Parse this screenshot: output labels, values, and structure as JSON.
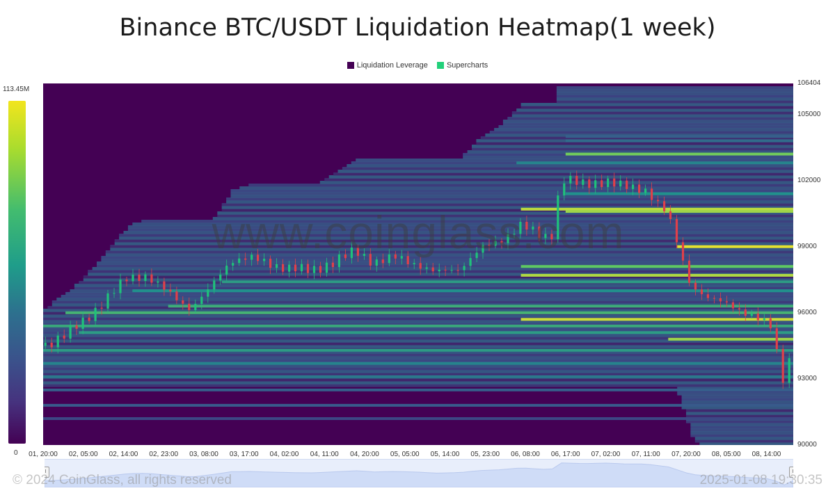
{
  "chart_data": {
    "type": "heatmap",
    "title": "Binance BTC/USDT Liquidation Heatmap(1 week)",
    "legend": [
      {
        "name": "Liquidation Leverage",
        "color": "#440154"
      },
      {
        "name": "Supercharts",
        "color": "#22d07a"
      }
    ],
    "legend_position": "top-center",
    "color_scale": {
      "min_label": "0",
      "max_label": "113.45M",
      "palette": "viridis"
    },
    "ylim": [
      90000,
      106404
    ],
    "y_ticks": [
      "106404",
      "105000",
      "102000",
      "99000",
      "96000",
      "93000",
      "90000"
    ],
    "y_tick_values": [
      106404,
      105000,
      102000,
      99000,
      96000,
      93000,
      90000
    ],
    "x_ticks": [
      "01, 20:00",
      "02, 05:00",
      "02, 14:00",
      "02, 23:00",
      "03, 08:00",
      "03, 17:00",
      "04, 02:00",
      "04, 11:00",
      "04, 20:00",
      "05, 05:00",
      "05, 14:00",
      "05, 23:00",
      "06, 08:00",
      "06, 17:00",
      "07, 02:00",
      "07, 11:00",
      "07, 20:00",
      "08, 05:00",
      "08, 14:00"
    ],
    "x_range_hours": [
      0,
      168
    ],
    "price_path": [
      [
        0,
        94500
      ],
      [
        5,
        95000
      ],
      [
        9,
        95600
      ],
      [
        14,
        96600
      ],
      [
        19,
        97600
      ],
      [
        23,
        97700
      ],
      [
        28,
        96900
      ],
      [
        33,
        96200
      ],
      [
        37,
        97000
      ],
      [
        42,
        98400
      ],
      [
        46,
        98500
      ],
      [
        51,
        98200
      ],
      [
        56,
        98000
      ],
      [
        60,
        97900
      ],
      [
        65,
        98300
      ],
      [
        70,
        98800
      ],
      [
        74,
        98300
      ],
      [
        79,
        98500
      ],
      [
        84,
        98200
      ],
      [
        88,
        97800
      ],
      [
        93,
        98000
      ],
      [
        98,
        98900
      ],
      [
        102,
        99200
      ],
      [
        107,
        100000
      ],
      [
        112,
        99400
      ],
      [
        114,
        99600
      ],
      [
        116,
        102100
      ],
      [
        121,
        101800
      ],
      [
        126,
        102000
      ],
      [
        130,
        101700
      ],
      [
        135,
        101600
      ],
      [
        140,
        100400
      ],
      [
        145,
        97300
      ],
      [
        149,
        96600
      ],
      [
        154,
        96400
      ],
      [
        158,
        95900
      ],
      [
        163,
        95400
      ],
      [
        166,
        92800
      ],
      [
        168,
        94700
      ]
    ],
    "liquidation_bands": [
      {
        "price": 104000,
        "start": 117,
        "intensity": 0.3
      },
      {
        "price": 103800,
        "start": 117,
        "intensity": 0.35
      },
      {
        "price": 103200,
        "start": 117,
        "intensity": 0.78
      },
      {
        "price": 102800,
        "start": 106,
        "intensity": 0.45
      },
      {
        "price": 101400,
        "start": 117,
        "intensity": 0.5
      },
      {
        "price": 100700,
        "start": 107,
        "intensity": 0.9
      },
      {
        "price": 100600,
        "start": 117,
        "intensity": 0.85
      },
      {
        "price": 99000,
        "start": 142,
        "intensity": 0.96
      },
      {
        "price": 98100,
        "start": 107,
        "intensity": 0.75
      },
      {
        "price": 97700,
        "start": 107,
        "intensity": 0.88
      },
      {
        "price": 97400,
        "start": 40,
        "intensity": 0.55
      },
      {
        "price": 97000,
        "start": 20,
        "intensity": 0.5
      },
      {
        "price": 96300,
        "start": 28,
        "intensity": 0.62
      },
      {
        "price": 96000,
        "start": 5,
        "intensity": 0.65
      },
      {
        "price": 95700,
        "start": 107,
        "intensity": 0.92
      },
      {
        "price": 95400,
        "start": 0,
        "intensity": 0.6
      },
      {
        "price": 95100,
        "start": 8,
        "intensity": 0.55
      },
      {
        "price": 94800,
        "start": 140,
        "intensity": 0.85
      },
      {
        "price": 94300,
        "start": 0,
        "intensity": 0.55
      },
      {
        "price": 93700,
        "start": 0,
        "intensity": 0.45
      },
      {
        "price": 93100,
        "start": 0,
        "intensity": 0.4
      },
      {
        "price": 92500,
        "start": 0,
        "intensity": 0.3
      },
      {
        "price": 91800,
        "start": 0,
        "intensity": 0.28
      },
      {
        "price": 91200,
        "start": 0,
        "intensity": 0.22
      }
    ]
  },
  "watermark": "www.coinglass.com",
  "footer": {
    "copyright": "© 2024 CoinGlass, all rights reserved",
    "timestamp": "2025-01-08 19:30:35"
  },
  "navigator": {
    "handle_icon": "pause-icon",
    "handle_glyph": "II"
  }
}
